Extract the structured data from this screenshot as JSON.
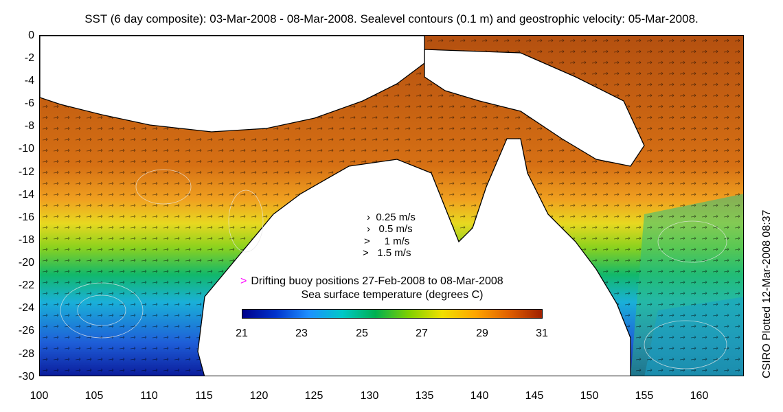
{
  "title": "SST (6 day composite): 03-Mar-2008 - 08-Mar-2008. Sealevel contours (0.1 m) and geostrophic velocity: 05-Mar-2008.",
  "side_label": "CSIRO Plotted 12-Mar-2008 08:37",
  "y_axis": {
    "ticks": [
      "0",
      "-2",
      "-4",
      "-6",
      "-8",
      "-10",
      "-12",
      "-14",
      "-16",
      "-18",
      "-20",
      "-22",
      "-24",
      "-26",
      "-28",
      "-30"
    ],
    "range": [
      -30,
      0
    ]
  },
  "x_axis": {
    "ticks": [
      "100",
      "105",
      "110",
      "115",
      "120",
      "125",
      "130",
      "135",
      "140",
      "145",
      "150",
      "155",
      "160"
    ],
    "range": [
      100,
      164
    ]
  },
  "velocity_legend": [
    "0.25 m/s",
    "0.5 m/s",
    "1 m/s",
    "1.5 m/s"
  ],
  "buoy_legend": {
    "symbol": ">",
    "label": "Drifting buoy positions 27-Feb-2008 to 08-Mar-2008",
    "color": "#ff00ff"
  },
  "colorbar": {
    "title": "Sea surface temperature (degrees C)",
    "ticks": [
      "21",
      "23",
      "25",
      "27",
      "29",
      "31"
    ],
    "range": [
      21,
      31
    ],
    "colors": [
      "#00008b",
      "#0033cc",
      "#1e90ff",
      "#00c8c8",
      "#00b050",
      "#7fd000",
      "#f0e000",
      "#ffa500",
      "#e06000",
      "#a02000"
    ]
  },
  "colors": {
    "land": "#ffffff",
    "coast": "#000000",
    "sealevel_contour": "#e6e6e6",
    "vector": "#000000"
  }
}
